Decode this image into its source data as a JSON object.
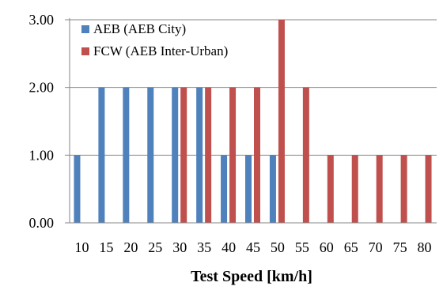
{
  "chart_data": {
    "type": "bar",
    "categories": [
      "10",
      "15",
      "20",
      "25",
      "30",
      "35",
      "40",
      "45",
      "50",
      "55",
      "60",
      "65",
      "70",
      "75",
      "80"
    ],
    "series": [
      {
        "name": "AEB (AEB City)",
        "color": "#4f81bd",
        "values": [
          1,
          2,
          2,
          2,
          2,
          2,
          1,
          1,
          1,
          0,
          0,
          0,
          0,
          0,
          0
        ]
      },
      {
        "name": "FCW (AEB Inter-Urban)",
        "color": "#c0504d",
        "values": [
          0,
          0,
          0,
          0,
          2,
          2,
          2,
          2,
          3,
          2,
          1,
          1,
          1,
          1,
          1
        ]
      }
    ],
    "xlabel": "Test Speed [km/h]",
    "ylabel": "",
    "ylim": [
      0,
      3
    ],
    "yticks": [
      "0.00",
      "1.00",
      "2.00",
      "3.00"
    ],
    "grid": true,
    "legend_position": "top-left"
  }
}
